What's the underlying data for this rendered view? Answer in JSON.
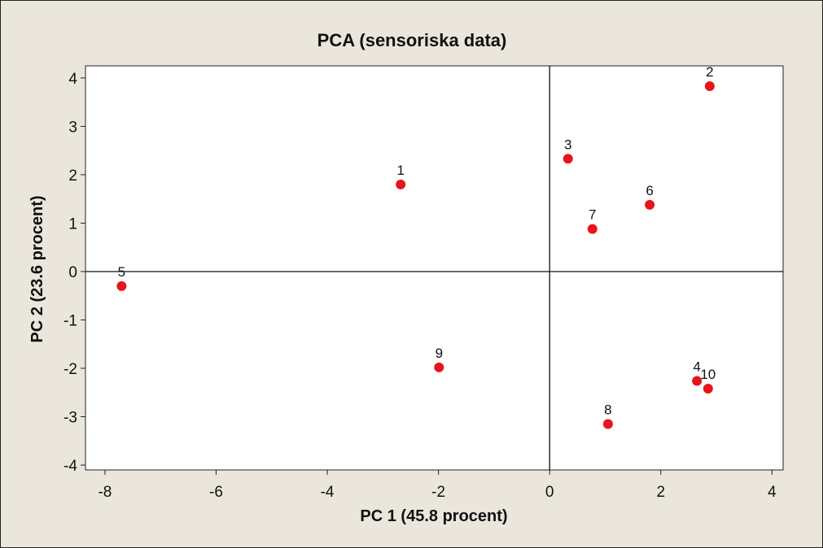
{
  "chart_data": {
    "type": "scatter",
    "title": "PCA (sensoriska data)",
    "xlabel": "PC 1 (45.8 procent)",
    "ylabel": "PC 2 (23.6 procent)",
    "xlim": [
      -8.35,
      4.2
    ],
    "ylim": [
      -4.1,
      4.25
    ],
    "xticks": [
      -8,
      -6,
      -4,
      -2,
      0,
      2,
      4
    ],
    "yticks": [
      -4,
      -3,
      -2,
      -1,
      0,
      1,
      2,
      3,
      4
    ],
    "xtick_labels": [
      "-8",
      "-6",
      "-4",
      "-2",
      "0",
      "2",
      "4"
    ],
    "ytick_labels": [
      "-4",
      "-3",
      "-2",
      "-1",
      "0",
      "1",
      "2",
      "3",
      "4"
    ],
    "reference_lines": {
      "x": 0,
      "y": 0
    },
    "grid": false,
    "marker_color": "#e8141c",
    "points": [
      {
        "label": "1",
        "x": -2.68,
        "y": 1.8
      },
      {
        "label": "2",
        "x": 2.88,
        "y": 3.83
      },
      {
        "label": "3",
        "x": 0.33,
        "y": 2.33
      },
      {
        "label": "4",
        "x": 2.65,
        "y": -2.26
      },
      {
        "label": "5",
        "x": -7.7,
        "y": -0.3
      },
      {
        "label": "6",
        "x": 1.8,
        "y": 1.38
      },
      {
        "label": "7",
        "x": 0.77,
        "y": 0.88
      },
      {
        "label": "8",
        "x": 1.05,
        "y": -3.15
      },
      {
        "label": "9",
        "x": -1.99,
        "y": -1.98
      },
      {
        "label": "10",
        "x": 2.85,
        "y": -2.42
      }
    ]
  }
}
